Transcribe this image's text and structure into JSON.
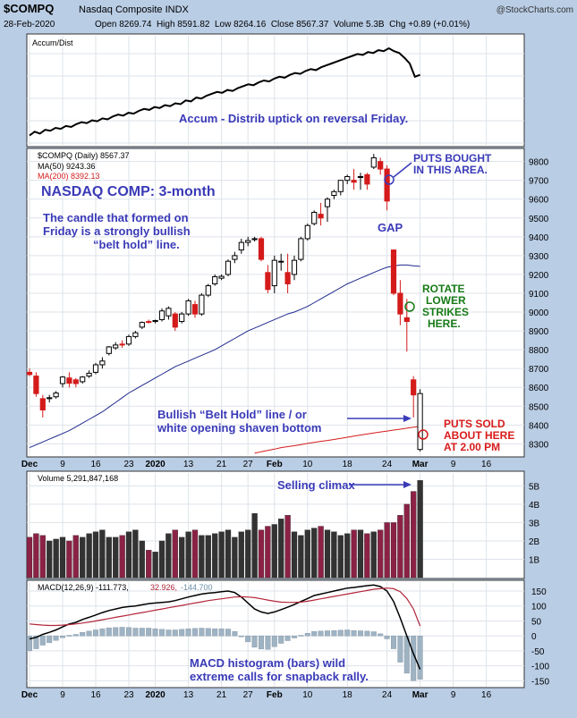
{
  "header": {
    "symbol": "$COMPQ",
    "name": "Nasdaq Composite INDX",
    "source": "@StockCharts.com",
    "date": "28-Feb-2020",
    "quote": "Open 8269.74  High 8591.82  Low 8264.16  Close 8567.37  Volume 5.3B  Chg +0.89 (+0.01%)"
  },
  "labels": {
    "accum_title": "Accum/Dist",
    "price_title": "$COMPQ (Daily) 8567.37",
    "ma50": "MA(50) 9243.36",
    "ma200": "MA(200) 8392.13",
    "volume_title": "Volume 5,291,847,168",
    "macd_prefix": "MACD(12,26,9) -111.773,",
    "macd_v1": "32.926,",
    "macd_v2": "-144.700"
  },
  "annotations": {
    "accum_note": "Accum - Distrib uptick on reversal Friday.",
    "main_title": "NASDAQ COMP: 3-month",
    "candle_note_1": "The candle that formed on",
    "candle_note_2": "Friday is a strongly bullish",
    "candle_note_3": "“belt hold” line.",
    "puts_bought_1": "PUTS BOUGHT",
    "puts_bought_2": "IN THIS AREA.",
    "gap": "GAP",
    "rotate_1": "ROTATE",
    "rotate_2": "LOWER",
    "rotate_3": "STRIKES",
    "rotate_4": "HERE.",
    "belt_1": "Bullish “Belt Hold” line / or",
    "belt_2": "white opening shaven bottom",
    "puts_sold_1": "PUTS SOLD",
    "puts_sold_2": "ABOUT HERE",
    "puts_sold_3": "AT 2.00 PM",
    "climax": "Selling climax",
    "macd_note_1": "MACD histogram (bars) wild",
    "macd_note_2": "extreme calls for snapback rally."
  },
  "colors": {
    "up": "#000000",
    "down": "#d41a1a",
    "ma50": "#1f2a8c",
    "ma200": "#d41a1a",
    "vol_up": "#333333",
    "vol_down": "#8b2246",
    "hist": "#9fb3c3",
    "signal": "#b3263a"
  },
  "chart_data": {
    "type": "candlestick",
    "title": "NASDAQ COMP: 3-month",
    "x_tick_labels": [
      "Dec",
      "9",
      "16",
      "23",
      "2020",
      "13",
      "21",
      "27",
      "Feb",
      "10",
      "18",
      "24",
      "Mar",
      "9",
      "16"
    ],
    "price_axis": [
      8300,
      8400,
      8500,
      8600,
      8700,
      8800,
      8900,
      9000,
      9100,
      9200,
      9300,
      9400,
      9500,
      9600,
      9700,
      9800
    ],
    "volume_axis": [
      "1B",
      "2B",
      "3B",
      "4B",
      "5B"
    ],
    "macd_axis": [
      150,
      100,
      50,
      0,
      -50,
      -100,
      -150
    ],
    "price_ylim": [
      8240,
      9860
    ],
    "volume_ylim": [
      0,
      5.7
    ],
    "macd_ylim": [
      -170,
      180
    ],
    "ohlc": [
      [
        8680,
        8700,
        8660,
        8668
      ],
      [
        8660,
        8680,
        8550,
        8567
      ],
      [
        8540,
        8560,
        8440,
        8480
      ],
      [
        8540,
        8560,
        8520,
        8545
      ],
      [
        8550,
        8580,
        8540,
        8570
      ],
      [
        8620,
        8660,
        8600,
        8655
      ],
      [
        8650,
        8680,
        8600,
        8622
      ],
      [
        8640,
        8650,
        8600,
        8620
      ],
      [
        8630,
        8660,
        8620,
        8655
      ],
      [
        8660,
        8690,
        8650,
        8675
      ],
      [
        8680,
        8730,
        8670,
        8720
      ],
      [
        8720,
        8760,
        8700,
        8740
      ],
      [
        8780,
        8820,
        8770,
        8815
      ],
      [
        8810,
        8840,
        8800,
        8825
      ],
      [
        8830,
        8850,
        8810,
        8825
      ],
      [
        8830,
        8880,
        8820,
        8870
      ],
      [
        8870,
        8900,
        8860,
        8890
      ],
      [
        8920,
        8950,
        8910,
        8945
      ],
      [
        8950,
        8960,
        8940,
        8945
      ],
      [
        8950,
        8960,
        8940,
        8955
      ],
      [
        8960,
        9020,
        8950,
        9006
      ],
      [
        8980,
        9030,
        8960,
        9020
      ],
      [
        8990,
        9000,
        8900,
        8920
      ],
      [
        8950,
        9000,
        8940,
        8990
      ],
      [
        8990,
        9070,
        8980,
        9060
      ],
      [
        9040,
        9060,
        8970,
        8990
      ],
      [
        8990,
        9100,
        8980,
        9090
      ],
      [
        9090,
        9150,
        9080,
        9140
      ],
      [
        9150,
        9200,
        9140,
        9188
      ],
      [
        9180,
        9200,
        9170,
        9190
      ],
      [
        9200,
        9280,
        9190,
        9270
      ],
      [
        9280,
        9320,
        9260,
        9300
      ],
      [
        9330,
        9390,
        9310,
        9370
      ],
      [
        9370,
        9400,
        9350,
        9380
      ],
      [
        9385,
        9400,
        9375,
        9390
      ],
      [
        9390,
        9400,
        9270,
        9280
      ],
      [
        9210,
        9250,
        9100,
        9120
      ],
      [
        9140,
        9300,
        9100,
        9275
      ],
      [
        9270,
        9310,
        9220,
        9270
      ],
      [
        9210,
        9310,
        9100,
        9150
      ],
      [
        9200,
        9300,
        9170,
        9275
      ],
      [
        9280,
        9400,
        9270,
        9390
      ],
      [
        9390,
        9470,
        9380,
        9460
      ],
      [
        9470,
        9540,
        9460,
        9530
      ],
      [
        9520,
        9580,
        9460,
        9500
      ],
      [
        9560,
        9610,
        9480,
        9600
      ],
      [
        9620,
        9650,
        9600,
        9640
      ],
      [
        9640,
        9700,
        9620,
        9700
      ],
      [
        9700,
        9730,
        9680,
        9720
      ],
      [
        9700,
        9760,
        9650,
        9690
      ],
      [
        9720,
        9740,
        9650,
        9720
      ],
      [
        9730,
        9740,
        9650,
        9680
      ],
      [
        9770,
        9840,
        9760,
        9820
      ],
      [
        9800,
        9820,
        9730,
        9760
      ],
      [
        9760,
        9780,
        9540,
        9590
      ],
      [
        9330,
        9330,
        9090,
        9100
      ],
      [
        9100,
        9170,
        8930,
        8990
      ],
      [
        8970,
        9070,
        8790,
        8950
      ],
      [
        8640,
        8660,
        8440,
        8560
      ],
      [
        8270,
        8590,
        8260,
        8567
      ]
    ],
    "ma50": [
      8280,
      8295,
      8310,
      8325,
      8340,
      8355,
      8370,
      8390,
      8410,
      8430,
      8450,
      8470,
      8495,
      8520,
      8545,
      8570,
      8590,
      8610,
      8630,
      8650,
      8670,
      8690,
      8710,
      8725,
      8740,
      8755,
      8770,
      8785,
      8800,
      8820,
      8840,
      8860,
      8880,
      8900,
      8915,
      8930,
      8945,
      8960,
      8975,
      8990,
      9000,
      9015,
      9030,
      9050,
      9070,
      9090,
      9110,
      9130,
      9150,
      9165,
      9180,
      9195,
      9210,
      9225,
      9238,
      9245,
      9250,
      9250,
      9246,
      9243
    ],
    "ma200": [
      null,
      null,
      null,
      null,
      null,
      null,
      null,
      null,
      null,
      null,
      null,
      null,
      null,
      null,
      null,
      null,
      null,
      null,
      null,
      null,
      null,
      null,
      null,
      null,
      null,
      null,
      null,
      null,
      null,
      null,
      null,
      null,
      null,
      null,
      8250,
      8258,
      8265,
      8272,
      8280,
      8285,
      8290,
      8296,
      8302,
      8308,
      8313,
      8318,
      8323,
      8329,
      8335,
      8341,
      8347,
      8352,
      8358,
      8363,
      8368,
      8373,
      8378,
      8383,
      8388,
      8392
    ],
    "volume": [
      2.2,
      2.4,
      2.3,
      2.0,
      2.1,
      2.2,
      2.0,
      2.3,
      2.2,
      2.4,
      2.5,
      2.6,
      2.2,
      2.2,
      2.3,
      2.5,
      2.6,
      2.0,
      1.5,
      1.4,
      2.0,
      2.4,
      2.6,
      2.2,
      2.5,
      2.6,
      2.3,
      2.3,
      2.4,
      2.5,
      2.6,
      2.2,
      2.5,
      2.6,
      3.5,
      2.6,
      2.8,
      2.9,
      3.2,
      3.4,
      2.5,
      2.3,
      2.6,
      2.7,
      2.8,
      2.6,
      2.5,
      2.3,
      2.4,
      2.6,
      2.6,
      2.4,
      2.5,
      2.6,
      3.0,
      3.0,
      3.4,
      4.0,
      4.7,
      5.3
    ],
    "macd": [
      -10,
      -5,
      5,
      12,
      20,
      30,
      40,
      45,
      55,
      62,
      70,
      78,
      85,
      90,
      95,
      98,
      100,
      104,
      108,
      110,
      112,
      114,
      118,
      124,
      130,
      135,
      140,
      143,
      145,
      148,
      150,
      145,
      130,
      110,
      90,
      80,
      75,
      80,
      88,
      96,
      105,
      115,
      125,
      135,
      140,
      145,
      150,
      155,
      160,
      162,
      165,
      168,
      170,
      165,
      150,
      115,
      60,
      0,
      -60,
      -112
    ],
    "signal": [
      40,
      38,
      36,
      35,
      35,
      36,
      38,
      40,
      43,
      46,
      50,
      54,
      58,
      62,
      66,
      70,
      74,
      78,
      82,
      86,
      90,
      94,
      98,
      102,
      106,
      110,
      114,
      118,
      121,
      124,
      127,
      130,
      131,
      130,
      128,
      124,
      120,
      116,
      113,
      112,
      112,
      113,
      116,
      120,
      124,
      128,
      132,
      136,
      140,
      144,
      148,
      152,
      156,
      158,
      160,
      158,
      148,
      125,
      90,
      33
    ]
  }
}
